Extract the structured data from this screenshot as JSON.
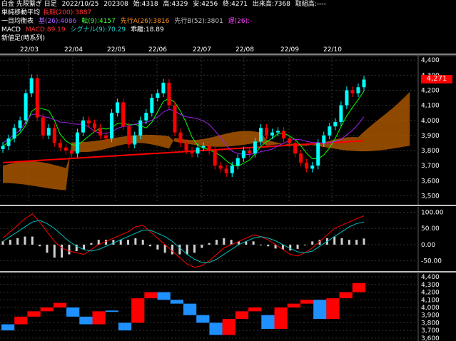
{
  "header": {
    "symbol": "白金 先限繋ぎ 日足",
    "date": "2022/10/25",
    "volume_id": "202308",
    "open_label": "始:",
    "open": "4318",
    "high_label": "高:",
    "high": "4329",
    "low_label": "安:",
    "low": "4256",
    "close_label": "終:",
    "close": "4271",
    "vol_label": "出来高:",
    "vol": "7368",
    "oi_label": "取組高:",
    "oi": "----"
  },
  "ma_line": {
    "label": "単純移動平均",
    "long_label": "長期(200):",
    "long_value": "3887"
  },
  "ichimoku_line": {
    "label": "一目均衡表",
    "tenkan": "基(26):4086",
    "kijun": "転(9):4157",
    "senkou_a": "先行A(26):3816",
    "senkou_b": "先行B(52):3801",
    "chikou": "遅(26):-"
  },
  "macd_line": {
    "label": "MACD",
    "macd": "MACD:89.19",
    "signal": "シグナル(9):70.29",
    "hist": "乖離:18.89"
  },
  "shin_line": {
    "label": "新値足(時系列)"
  },
  "current_price_tag": "4,271",
  "colors": {
    "up": "#00ffff",
    "down": "#ff0000",
    "cloud_up": "#ff8c00",
    "cloud_down": "#a0a0a0",
    "tenkan": "#00ff00",
    "kijun": "#a020f0",
    "ma": "#ff0000",
    "macd": "#ff0000",
    "signal": "#00c0c0",
    "shin_up": "#ff0000",
    "shin_down": "#1e90ff"
  },
  "chart_data": [
    {
      "type": "line",
      "title": "",
      "x_labels": [
        "22/03",
        "22/04",
        "22/05",
        "22/06",
        "22/07",
        "22/08",
        "22/09",
        "22/10"
      ],
      "y_ticks": [
        "4,400",
        "4,300",
        "4,200",
        "4,100",
        "4,000",
        "3,900",
        "3,800",
        "3,700",
        "3,600",
        "3,500"
      ],
      "ylim": [
        3450,
        4420
      ],
      "series": [
        {
          "name": "",
          "values": [
            3830,
            3880,
            3950,
            4000,
            4180,
            4280,
            4020,
            3900,
            3950,
            3850,
            3820,
            3800,
            3780,
            3920,
            4000,
            3980,
            3950,
            3900,
            3880,
            4050,
            4120,
            3960,
            3840,
            3900,
            4000,
            4050,
            4150,
            4180,
            4250,
            4100,
            3920,
            3850,
            3800,
            3780,
            3820,
            3830,
            3800,
            3700,
            3680,
            3650,
            3700,
            3750,
            3800,
            3780,
            3860,
            3950,
            3900,
            3920,
            3930,
            3880,
            3850,
            3780,
            3720,
            3680,
            3700,
            3850,
            3900,
            3960,
            3990,
            4100,
            4200,
            4180,
            4220,
            4271
          ]
        }
      ]
    },
    {
      "type": "line",
      "title": "",
      "y_ticks": [
        "100.00",
        "50.00",
        "0.00",
        "-50.00"
      ],
      "ylim": [
        -75,
        110
      ],
      "series": [
        {
          "name": "MACD",
          "values": [
            20,
            40,
            60,
            80,
            95,
            70,
            40,
            10,
            -10,
            -20,
            -25,
            -30,
            -15,
            0,
            10,
            20,
            30,
            40,
            55,
            60,
            40,
            20,
            0,
            -20,
            -40,
            -60,
            -70,
            -65,
            -50,
            -30,
            -10,
            0,
            10,
            20,
            30,
            25,
            15,
            0,
            -15,
            -30,
            -35,
            -25,
            -10,
            10,
            30,
            50,
            60,
            70,
            80,
            89
          ]
        },
        {
          "name": "シグナル",
          "values": [
            10,
            25,
            40,
            55,
            70,
            75,
            65,
            50,
            30,
            10,
            -5,
            -15,
            -20,
            -15,
            -5,
            5,
            15,
            25,
            35,
            45,
            45,
            35,
            25,
            10,
            -10,
            -30,
            -45,
            -55,
            -55,
            -45,
            -30,
            -15,
            0,
            10,
            20,
            25,
            20,
            12,
            0,
            -12,
            -22,
            -25,
            -20,
            -5,
            10,
            25,
            40,
            55,
            65,
            70
          ]
        }
      ]
    },
    {
      "type": "bar",
      "title": "",
      "y_ticks": [
        "4,400",
        "4,300",
        "4,200",
        "4,100",
        "4,000",
        "3,900",
        "3,800",
        "3,700",
        "3,600"
      ],
      "ylim": [
        3580,
        4420
      ],
      "bricks": [
        {
          "x": 0,
          "low": 3700,
          "high": 3780,
          "up": false
        },
        {
          "x": 1,
          "low": 3780,
          "high": 3880,
          "up": true
        },
        {
          "x": 2,
          "low": 3880,
          "high": 3950,
          "up": true
        },
        {
          "x": 3,
          "low": 3950,
          "high": 4000,
          "up": true
        },
        {
          "x": 4,
          "low": 4000,
          "high": 4060,
          "up": true
        },
        {
          "x": 5,
          "low": 3880,
          "high": 4000,
          "up": false
        },
        {
          "x": 6,
          "low": 3780,
          "high": 3880,
          "up": false
        },
        {
          "x": 7,
          "low": 3780,
          "high": 3950,
          "up": true
        },
        {
          "x": 8,
          "low": 3950,
          "high": 3960,
          "up": false
        },
        {
          "x": 9,
          "low": 3700,
          "high": 3800,
          "up": false
        },
        {
          "x": 10,
          "low": 3800,
          "high": 4120,
          "up": true
        },
        {
          "x": 11,
          "low": 4120,
          "high": 4200,
          "up": true
        },
        {
          "x": 12,
          "low": 4100,
          "high": 4200,
          "up": false
        },
        {
          "x": 13,
          "low": 4050,
          "high": 4100,
          "up": false
        },
        {
          "x": 14,
          "low": 3900,
          "high": 4050,
          "up": false
        },
        {
          "x": 15,
          "low": 3800,
          "high": 3900,
          "up": false
        },
        {
          "x": 16,
          "low": 3640,
          "high": 3800,
          "up": false
        },
        {
          "x": 17,
          "low": 3640,
          "high": 3850,
          "up": true
        },
        {
          "x": 18,
          "low": 3850,
          "high": 3950,
          "up": true
        },
        {
          "x": 19,
          "low": 3950,
          "high": 4000,
          "up": true
        },
        {
          "x": 20,
          "low": 3720,
          "high": 3900,
          "up": false
        },
        {
          "x": 21,
          "low": 3720,
          "high": 4000,
          "up": true
        },
        {
          "x": 22,
          "low": 4000,
          "high": 4050,
          "up": true
        },
        {
          "x": 23,
          "low": 4050,
          "high": 4100,
          "up": true
        },
        {
          "x": 24,
          "low": 3850,
          "high": 4100,
          "up": false
        },
        {
          "x": 25,
          "low": 3850,
          "high": 4120,
          "up": true
        },
        {
          "x": 26,
          "low": 4120,
          "high": 4200,
          "up": true
        },
        {
          "x": 27,
          "low": 4200,
          "high": 4320,
          "up": true
        }
      ]
    }
  ]
}
